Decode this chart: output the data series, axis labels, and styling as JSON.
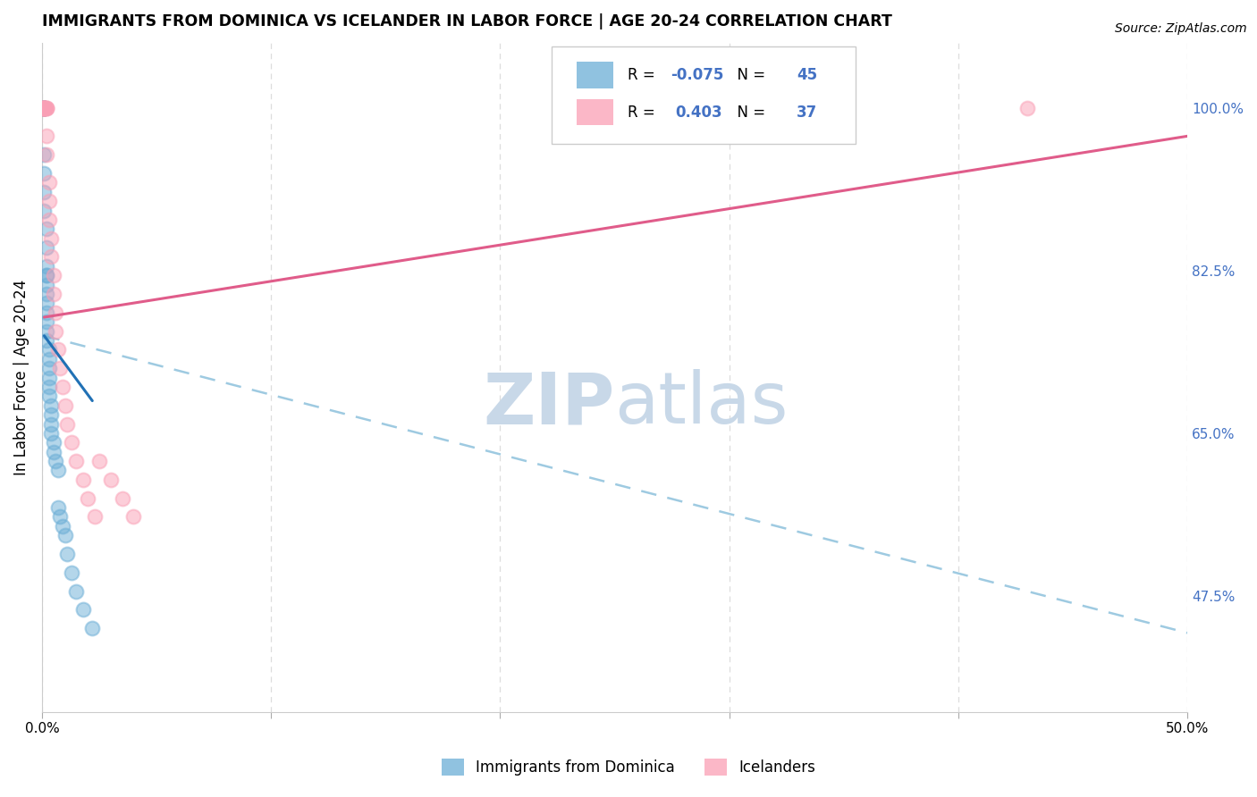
{
  "title": "IMMIGRANTS FROM DOMINICA VS ICELANDER IN LABOR FORCE | AGE 20-24 CORRELATION CHART",
  "source": "Source: ZipAtlas.com",
  "ylabel": "In Labor Force | Age 20-24",
  "xlim": [
    0.0,
    0.5
  ],
  "ylim": [
    0.35,
    1.07
  ],
  "xticks": [
    0.0,
    0.1,
    0.2,
    0.3,
    0.4,
    0.5
  ],
  "xticklabels": [
    "0.0%",
    "",
    "",
    "",
    "",
    "50.0%"
  ],
  "right_yticks": [
    1.0,
    0.825,
    0.65,
    0.475
  ],
  "right_yticklabels": [
    "100.0%",
    "82.5%",
    "65.0%",
    "47.5%"
  ],
  "grid_color": "#dddddd",
  "background_color": "#ffffff",
  "blue_color": "#6baed6",
  "pink_color": "#fa9fb5",
  "blue_line_color": "#2171b5",
  "pink_line_color": "#e05c8a",
  "dashed_line_color": "#9ecae1",
  "legend_R_blue": "-0.075",
  "legend_N_blue": "45",
  "legend_R_pink": "0.403",
  "legend_N_pink": "37",
  "label_dominica": "Immigrants from Dominica",
  "label_icelanders": "Icelanders",
  "blue_points_x": [
    0.001,
    0.001,
    0.001,
    0.001,
    0.001,
    0.001,
    0.001,
    0.001,
    0.001,
    0.001,
    0.002,
    0.002,
    0.002,
    0.002,
    0.002,
    0.002,
    0.002,
    0.002,
    0.002,
    0.002,
    0.002,
    0.002,
    0.003,
    0.003,
    0.003,
    0.003,
    0.003,
    0.003,
    0.004,
    0.004,
    0.004,
    0.004,
    0.005,
    0.005,
    0.006,
    0.007,
    0.007,
    0.008,
    0.009,
    0.01,
    0.011,
    0.013,
    0.015,
    0.018,
    0.022
  ],
  "blue_points_y": [
    1.0,
    1.0,
    1.0,
    1.0,
    1.0,
    1.0,
    0.95,
    0.93,
    0.91,
    0.89,
    0.87,
    0.85,
    0.83,
    0.82,
    0.82,
    0.81,
    0.8,
    0.79,
    0.78,
    0.77,
    0.76,
    0.75,
    0.74,
    0.73,
    0.72,
    0.71,
    0.7,
    0.69,
    0.68,
    0.67,
    0.66,
    0.65,
    0.64,
    0.63,
    0.62,
    0.61,
    0.57,
    0.56,
    0.55,
    0.54,
    0.52,
    0.5,
    0.48,
    0.46,
    0.44
  ],
  "pink_points_x": [
    0.001,
    0.001,
    0.001,
    0.001,
    0.001,
    0.001,
    0.001,
    0.001,
    0.002,
    0.002,
    0.002,
    0.002,
    0.002,
    0.003,
    0.003,
    0.003,
    0.004,
    0.004,
    0.005,
    0.005,
    0.006,
    0.006,
    0.007,
    0.008,
    0.009,
    0.01,
    0.011,
    0.013,
    0.015,
    0.018,
    0.02,
    0.023,
    0.025,
    0.03,
    0.035,
    0.04,
    0.43
  ],
  "pink_points_y": [
    1.0,
    1.0,
    1.0,
    1.0,
    1.0,
    1.0,
    1.0,
    1.0,
    1.0,
    1.0,
    1.0,
    0.97,
    0.95,
    0.92,
    0.9,
    0.88,
    0.86,
    0.84,
    0.82,
    0.8,
    0.78,
    0.76,
    0.74,
    0.72,
    0.7,
    0.68,
    0.66,
    0.64,
    0.62,
    0.6,
    0.58,
    0.56,
    0.62,
    0.6,
    0.58,
    0.56,
    1.0
  ],
  "blue_trend_x": [
    0.001,
    0.022
  ],
  "blue_trend_y": [
    0.755,
    0.685
  ],
  "pink_trend_x": [
    0.001,
    0.5
  ],
  "pink_trend_y": [
    0.775,
    0.97
  ],
  "dashed_trend_x": [
    0.001,
    0.5
  ],
  "dashed_trend_y": [
    0.755,
    0.435
  ],
  "watermark_left": "ZIP",
  "watermark_right": "atlas",
  "watermark_color": "#c8d8e8",
  "watermark_fontsize": 58
}
